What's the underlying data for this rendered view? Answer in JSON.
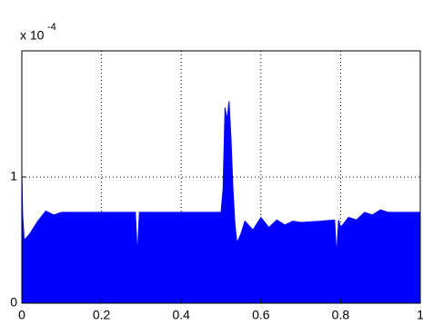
{
  "chart_data": {
    "type": "area",
    "color": "#0000ff",
    "grid": true,
    "y_multiplier": {
      "base": "x 10",
      "exponent": "-4"
    },
    "xlim": [
      0,
      1
    ],
    "xticks": [
      0,
      0.2,
      0.4,
      0.6,
      0.8,
      1
    ],
    "ylim": [
      0,
      2
    ],
    "yticks": [
      0,
      1
    ],
    "x": [
      0,
      0.002,
      0.006,
      0.02,
      0.04,
      0.06,
      0.08,
      0.1,
      0.15,
      0.2,
      0.25,
      0.285,
      0.29,
      0.295,
      0.3,
      0.35,
      0.4,
      0.45,
      0.5,
      0.505,
      0.51,
      0.515,
      0.52,
      0.525,
      0.53,
      0.535,
      0.54,
      0.55,
      0.56,
      0.58,
      0.6,
      0.62,
      0.64,
      0.66,
      0.68,
      0.7,
      0.75,
      0.785,
      0.79,
      0.795,
      0.8,
      0.82,
      0.84,
      0.86,
      0.88,
      0.9,
      0.92,
      0.95,
      1
    ],
    "y": [
      1.05,
      0.7,
      0.5,
      0.55,
      0.65,
      0.73,
      0.7,
      0.72,
      0.72,
      0.72,
      0.72,
      0.72,
      0.38,
      0.72,
      0.72,
      0.72,
      0.72,
      0.72,
      0.72,
      0.9,
      1.55,
      1.45,
      1.6,
      1.3,
      0.9,
      0.62,
      0.48,
      0.55,
      0.65,
      0.58,
      0.68,
      0.6,
      0.66,
      0.62,
      0.65,
      0.64,
      0.65,
      0.66,
      0.38,
      0.66,
      0.6,
      0.68,
      0.66,
      0.72,
      0.7,
      0.74,
      0.72,
      0.72,
      0.72
    ]
  }
}
